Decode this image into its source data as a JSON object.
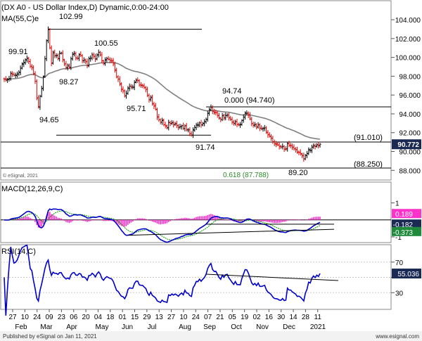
{
  "chart_data": [
    {
      "panel": "price",
      "type": "ohlc",
      "title": "(DX A0 - US Dollar Index,D) Dynamic,0:00-24:00",
      "overlay_label": "MA(55,C)e",
      "copyright": "© eSignal, 2021",
      "ylim": [
        87.2,
        105.2
      ],
      "ticks": [
        "88.000",
        "90.000",
        "92.000",
        "94.000",
        "96.000",
        "98.000",
        "100.000",
        "102.000",
        "104.000"
      ],
      "last_price": "90.772",
      "last_price_value": 90.772,
      "colors": {
        "up": "#000000",
        "down": "#dd0000",
        "ma": "#808080",
        "last_box": "#1a2a55"
      },
      "swing_labels": [
        {
          "text": "99.91",
          "value": 99.91
        },
        {
          "text": "102.99",
          "value": 102.99
        },
        {
          "text": "100.55",
          "value": 100.55
        },
        {
          "text": "98.27",
          "value": 98.27
        },
        {
          "text": "94.65",
          "value": 94.65
        },
        {
          "text": "95.71",
          "value": 95.71
        },
        {
          "text": "94.74",
          "value": 94.74
        },
        {
          "text": "91.74",
          "value": 91.74
        },
        {
          "text": "89.20",
          "value": 89.2
        }
      ],
      "fib_labels": [
        {
          "text": "0.000 (94.740)",
          "value": 94.74
        },
        {
          "text": "0.618 (87.788)",
          "value": 87.788
        }
      ],
      "level_labels": [
        {
          "text": "(91.010)",
          "value": 91.01
        },
        {
          "text": "(88.250)",
          "value": 88.25
        }
      ],
      "ohlc": [
        [
          97.73,
          97.69
        ],
        [
          97.71,
          97.59
        ],
        [
          97.57,
          97.64
        ],
        [
          97.69,
          97.75
        ],
        [
          97.73,
          98.32
        ],
        [
          98.26,
          98.21
        ],
        [
          98.19,
          98.1
        ],
        [
          98.1,
          98.13
        ],
        [
          98.07,
          98.22
        ],
        [
          98.24,
          98.44
        ],
        [
          98.39,
          98.84
        ],
        [
          98.87,
          99.33
        ],
        [
          99.27,
          99.47
        ],
        [
          99.41,
          99.76
        ],
        [
          99.72,
          99.91
        ],
        [
          99.88,
          99.56
        ],
        [
          99.56,
          99.05
        ],
        [
          99.06,
          98.94
        ],
        [
          98.91,
          98.27
        ],
        [
          98.28,
          97.47
        ],
        [
          97.46,
          95.68
        ],
        [
          95.7,
          94.79
        ],
        [
          94.71,
          95.86
        ],
        [
          95.88,
          96.68
        ],
        [
          96.73,
          97.94
        ],
        [
          98.02,
          99.85
        ],
        [
          99.85,
          101.77
        ],
        [
          101.79,
          102.99
        ],
        [
          102.92,
          101.02
        ],
        [
          101,
          99.36
        ],
        [
          99.41,
          100.48
        ],
        [
          100.58,
          100.19
        ],
        [
          100.17,
          100.17
        ],
        [
          100.23,
          99.9
        ],
        [
          99.86,
          100.42
        ],
        [
          100.44,
          100.45
        ],
        [
          100.46,
          99.77
        ],
        [
          99.72,
          99.3
        ],
        [
          99.32,
          98.94
        ],
        [
          98.9,
          99.17
        ],
        [
          99.06,
          98.92
        ],
        [
          98.96,
          99.86
        ],
        [
          99.84,
          100.32
        ],
        [
          100.37,
          100.42
        ],
        [
          100.4,
          99.95
        ],
        [
          99.91,
          99.89
        ],
        [
          99.91,
          100.27
        ],
        [
          100.34,
          100.18
        ],
        [
          100.2,
          99.66
        ],
        [
          99.64,
          99.71
        ],
        [
          99.73,
          99.52
        ],
        [
          99.58,
          99.15
        ],
        [
          99.09,
          99.89
        ],
        [
          99.84,
          99.93
        ],
        [
          99.91,
          100.28
        ],
        [
          100.27,
          100.1
        ],
        [
          100.12,
          99.78
        ],
        [
          99.86,
          100.24
        ],
        [
          100.29,
          100.55
        ],
        [
          100.52,
          100.27
        ],
        [
          100.27,
          99.66
        ],
        [
          99.62,
          99.41
        ],
        [
          99.32,
          99.71
        ],
        [
          99.76,
          99.89
        ],
        [
          99.85,
          99.78
        ],
        [
          99.79,
          99.68
        ],
        [
          99.69,
          99.61
        ],
        [
          99.68,
          99.3
        ],
        [
          99.31,
          98.67
        ],
        [
          98.62,
          97.93
        ],
        [
          97.93,
          97.68
        ],
        [
          97.71,
          97.14
        ],
        [
          97.21,
          96.59
        ],
        [
          96.63,
          96.44
        ],
        [
          96.45,
          95.92
        ],
        [
          95.91,
          96.19
        ],
        [
          96.17,
          96.76
        ],
        [
          96.7,
          96.95
        ],
        [
          96.93,
          96.86
        ],
        [
          96.83,
          96.86
        ],
        [
          96.81,
          97.32
        ],
        [
          97.38,
          97.56
        ],
        [
          97.6,
          97.56
        ],
        [
          97.51,
          97.08
        ],
        [
          97.06,
          97.02
        ],
        [
          97.07,
          97.01
        ],
        [
          96.93,
          96.8
        ],
        [
          96.79,
          96.6
        ],
        [
          96.6,
          95.95
        ],
        [
          95.97,
          95.47
        ],
        [
          95.55,
          95.71
        ],
        [
          95.79,
          95.08
        ],
        [
          95.05,
          94.81
        ],
        [
          94.9,
          94.48
        ],
        [
          94.46,
          93.64
        ],
        [
          93.7,
          93.37
        ],
        [
          93.37,
          93.12
        ],
        [
          93.11,
          93.29
        ],
        [
          93.36,
          92.84
        ],
        [
          92.86,
          92.75
        ],
        [
          92.67,
          92.54
        ],
        [
          92.51,
          93.1
        ],
        [
          93.05,
          92.96
        ],
        [
          93.01,
          93.08
        ],
        [
          93.03,
          92.85
        ],
        [
          92.87,
          92.93
        ],
        [
          92.98,
          92.78
        ],
        [
          92.74,
          92.52
        ],
        [
          92.6,
          92.65
        ],
        [
          92.62,
          92.73
        ],
        [
          92.76,
          92.43
        ],
        [
          92.44,
          92.73
        ],
        [
          92.74,
          92.33
        ],
        [
          92.29,
          92.29
        ],
        [
          92.31,
          91.91
        ],
        [
          91.93,
          91.74
        ],
        [
          91.74,
          92.33
        ],
        [
          92.26,
          92.54
        ],
        [
          92.56,
          92.85
        ],
        [
          92.79,
          92.83
        ],
        [
          92.79,
          93.04
        ],
        [
          93.06,
          92.83
        ],
        [
          92.82,
          93.01
        ],
        [
          92.97,
          93.14
        ],
        [
          93.18,
          93.43
        ],
        [
          93.4,
          94.04
        ],
        [
          94.09,
          94.45
        ],
        [
          94.42,
          94.74
        ],
        [
          94.65,
          94.27
        ],
        [
          94.31,
          94.1
        ],
        [
          94.17,
          94.11
        ],
        [
          94.13,
          93.85
        ],
        [
          93.82,
          93.58
        ],
        [
          93.53,
          93.41
        ],
        [
          93.39,
          93.79
        ],
        [
          93.86,
          93.59
        ],
        [
          93.55,
          93.84
        ],
        [
          93.82,
          93.88
        ],
        [
          93.86,
          93.58
        ],
        [
          93.56,
          93.39
        ],
        [
          93.44,
          93.16
        ],
        [
          93.09,
          92.96
        ],
        [
          93.01,
          93.17
        ],
        [
          93.19,
          92.86
        ],
        [
          92.9,
          92.86
        ],
        [
          92.81,
          92.84
        ],
        [
          92.9,
          93.29
        ],
        [
          93.33,
          93.66
        ],
        [
          93.64,
          94.11
        ],
        [
          94.05,
          94.09
        ],
        [
          94.05,
          93.85
        ],
        [
          93.92,
          93.46
        ],
        [
          93.45,
          92.98
        ],
        [
          92.95,
          92.76
        ],
        [
          92.82,
          92.86
        ],
        [
          92.83,
          92.63
        ],
        [
          92.59,
          92.82
        ],
        [
          92.86,
          92.47
        ],
        [
          92.49,
          92.45
        ],
        [
          92.38,
          92.49
        ],
        [
          92.43,
          92.52
        ],
        [
          92.51,
          92.07
        ],
        [
          92,
          91.76
        ],
        [
          91.82,
          91.63
        ],
        [
          91.59,
          91.42
        ],
        [
          91.41,
          91.05
        ],
        [
          91.05,
          90.79
        ],
        [
          90.83,
          90.76
        ],
        [
          90.82,
          90.69
        ],
        [
          90.71,
          90.51
        ],
        [
          90.57,
          90.49
        ],
        [
          90.48,
          90.56
        ],
        [
          90.51,
          90.23
        ],
        [
          90.28,
          90.25
        ],
        [
          90.29,
          90.83
        ],
        [
          90.87,
          90.63
        ],
        [
          90.67,
          90.63
        ],
        [
          90.62,
          90.42
        ],
        [
          90.49,
          90.31
        ],
        [
          90.28,
          90.19
        ],
        [
          90.21,
          89.89
        ],
        [
          89.96,
          89.9
        ],
        [
          89.94,
          89.78
        ],
        [
          89.73,
          89.54
        ],
        [
          89.58,
          89.2
        ],
        [
          89.23,
          89.56
        ],
        [
          89.6,
          89.77
        ],
        [
          89.8,
          90.21
        ],
        [
          90.13,
          90.13
        ],
        [
          90.1,
          90.46
        ],
        [
          90.48,
          90.64
        ],
        [
          90.57,
          90.52
        ],
        [
          90.57,
          90.71
        ],
        [
          90.74,
          90.61
        ],
        [
          90.65,
          90.77
        ]
      ]
    },
    {
      "panel": "macd",
      "type": "line",
      "label": "MACD(12,26,9,C)",
      "ylim": [
        -1.25,
        2.1
      ],
      "ticks": [
        "1",
        "-1"
      ],
      "tick_values": [
        1,
        -1
      ],
      "readouts": [
        "0.189",
        "-0.182",
        "-0.373"
      ],
      "colors": {
        "macd": "#0000cc",
        "signal": "#009900",
        "histogram": "#ff33cc",
        "readout_pink": "#ff33cc",
        "readout_blue": "#1a2a55",
        "readout_green": "#1f8a3a"
      }
    },
    {
      "panel": "rsi",
      "type": "line",
      "label": "RSI(14,C)",
      "ylim": [
        10,
        90
      ],
      "ticks": [
        "70",
        "50",
        "30"
      ],
      "tick_values": [
        70,
        50,
        30
      ],
      "readout": "55.036",
      "colors": {
        "rsi": "#0000cc",
        "readout": "#1a2a55"
      }
    }
  ],
  "x_axis": {
    "day_labels": [
      "27",
      "10",
      "24",
      "09",
      "23",
      "06",
      "20",
      "04",
      "18",
      "01",
      "15",
      "29",
      "13",
      "27",
      "10",
      "24",
      "07",
      "21",
      "05",
      "19",
      "02",
      "16",
      "30",
      "14",
      "28",
      "11"
    ],
    "month_labels": [
      "Feb",
      "Mar",
      "Apr",
      "May",
      "Jun",
      "Jul",
      "Aug",
      "Sep",
      "Oct",
      "Nov",
      "Dec",
      "2021"
    ]
  },
  "footer": {
    "left": "Published by eSignal on Jan 11, 2021",
    "right": "www.esignal.com"
  }
}
